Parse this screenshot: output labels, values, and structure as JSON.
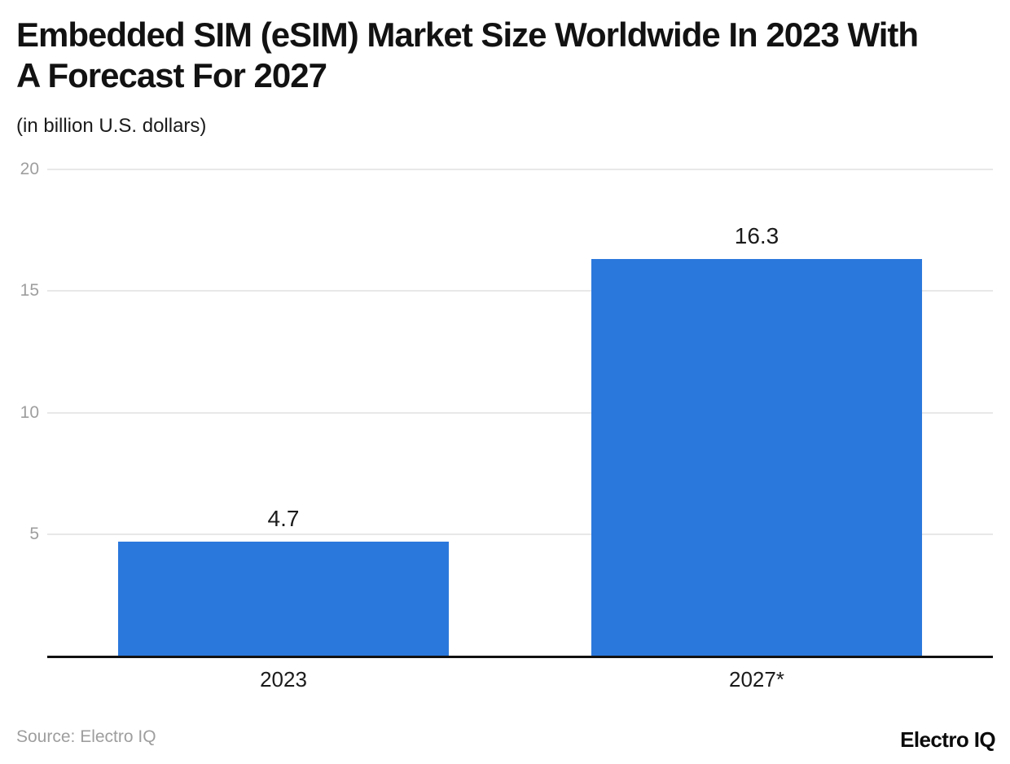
{
  "header": {
    "title": "Embedded SIM (eSIM) Market Size Worldwide In 2023 With\nA Forecast For 2027",
    "subtitle": "(in billion U.S. dollars)"
  },
  "chart_data": {
    "type": "bar",
    "categories": [
      "2023",
      "2027*"
    ],
    "values": [
      4.7,
      16.3
    ],
    "value_labels": [
      "4.7",
      "16.3"
    ],
    "title": "Embedded SIM (eSIM) Market Size Worldwide In 2023 With A Forecast For 2027",
    "subtitle": "(in billion U.S. dollars)",
    "xlabel": "",
    "ylabel": "",
    "ylim": [
      0,
      20
    ],
    "yticks": [
      5,
      10,
      15,
      20
    ],
    "grid": true,
    "legend": "none",
    "bar_color": "#2b78dc"
  },
  "colors": {
    "bar": "#2b78dc",
    "grid": "#e8e8e8",
    "axis": "#111111",
    "tick_label": "#9e9e9e",
    "text": "#1b1b1b",
    "source": "#9e9e9e"
  },
  "footer": {
    "source": "Source: Electro IQ",
    "logo": "Electro IQ"
  }
}
